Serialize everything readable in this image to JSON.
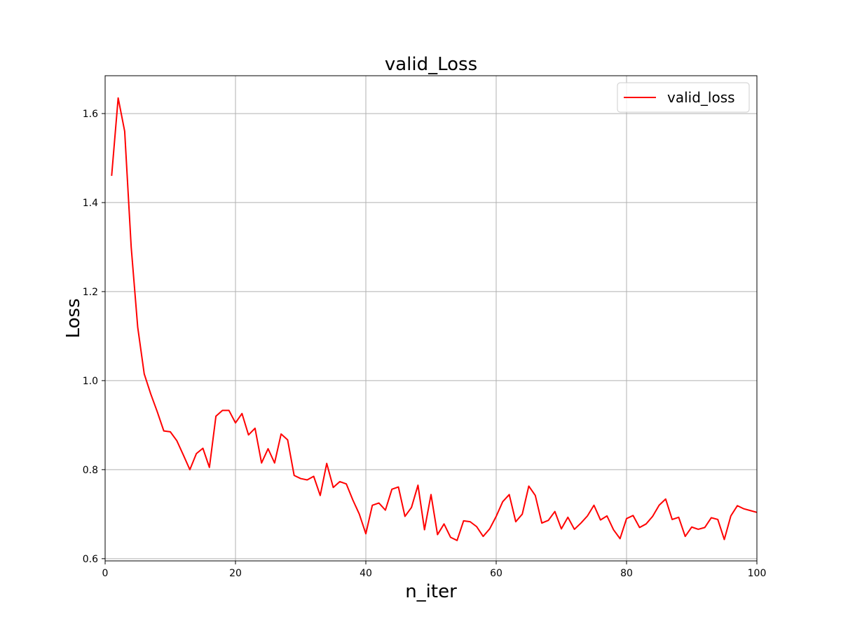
{
  "chart_data": {
    "type": "line",
    "title": "valid_Loss",
    "xlabel": "n_iter",
    "ylabel": "Loss",
    "xlim": [
      0,
      100
    ],
    "ylim": [
      0.595,
      1.685
    ],
    "xticks": [
      0,
      20,
      40,
      60,
      80,
      100
    ],
    "yticks": [
      0.6,
      0.8,
      1.0,
      1.2,
      1.4,
      1.6
    ],
    "grid": true,
    "legend_position": "top-right",
    "series": [
      {
        "name": "valid_loss",
        "color": "#ff0000",
        "x": [
          1,
          2,
          3,
          4,
          5,
          6,
          7,
          8,
          9,
          10,
          11,
          12,
          13,
          14,
          15,
          16,
          17,
          18,
          19,
          20,
          21,
          22,
          23,
          24,
          25,
          26,
          27,
          28,
          29,
          30,
          31,
          32,
          33,
          34,
          35,
          36,
          37,
          38,
          39,
          40,
          41,
          42,
          43,
          44,
          45,
          46,
          47,
          48,
          49,
          50,
          51,
          52,
          53,
          54,
          55,
          56,
          57,
          58,
          59,
          60,
          61,
          62,
          63,
          64,
          65,
          66,
          67,
          68,
          69,
          70,
          71,
          72,
          73,
          74,
          75,
          76,
          77,
          78,
          79,
          80,
          81,
          82,
          83,
          84,
          85,
          86,
          87,
          88,
          89,
          90,
          91,
          92,
          93,
          94,
          95,
          96,
          97,
          98,
          99,
          100
        ],
        "y": [
          1.46,
          1.635,
          1.56,
          1.3,
          1.12,
          1.015,
          0.97,
          0.93,
          0.887,
          0.885,
          0.865,
          0.833,
          0.8,
          0.836,
          0.848,
          0.805,
          0.92,
          0.933,
          0.933,
          0.905,
          0.926,
          0.878,
          0.893,
          0.815,
          0.847,
          0.815,
          0.88,
          0.867,
          0.787,
          0.78,
          0.777,
          0.785,
          0.742,
          0.814,
          0.76,
          0.773,
          0.768,
          0.732,
          0.7,
          0.656,
          0.72,
          0.725,
          0.709,
          0.756,
          0.761,
          0.695,
          0.715,
          0.765,
          0.665,
          0.744,
          0.654,
          0.678,
          0.648,
          0.641,
          0.685,
          0.683,
          0.672,
          0.65,
          0.667,
          0.695,
          0.728,
          0.744,
          0.683,
          0.7,
          0.763,
          0.742,
          0.68,
          0.686,
          0.706,
          0.667,
          0.693,
          0.666,
          0.68,
          0.696,
          0.72,
          0.687,
          0.696,
          0.665,
          0.645,
          0.69,
          0.697,
          0.67,
          0.678,
          0.695,
          0.72,
          0.734,
          0.688,
          0.693,
          0.65,
          0.671,
          0.666,
          0.67,
          0.692,
          0.688,
          0.643,
          0.696,
          0.719,
          0.712,
          0.708,
          0.704
        ]
      }
    ]
  }
}
